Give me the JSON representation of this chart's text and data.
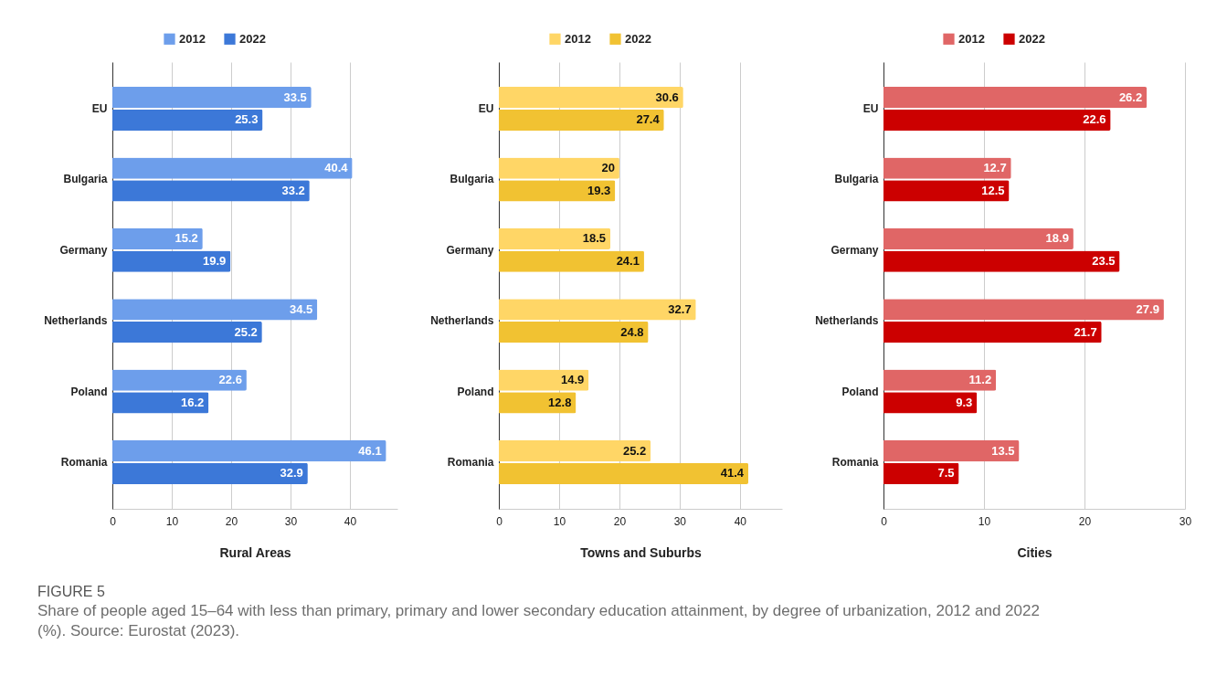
{
  "chart_data": [
    {
      "type": "bar",
      "orientation": "horizontal",
      "categories": [
        "EU",
        "Bulgaria",
        "Germany",
        "Netherlands",
        "Poland",
        "Romania"
      ],
      "series": [
        {
          "name": "2012",
          "color": "#6d9eeb",
          "values": [
            33.5,
            40.4,
            15.2,
            34.5,
            22.6,
            46.1
          ]
        },
        {
          "name": "2022",
          "color": "#3c78d8",
          "values": [
            25.3,
            33.2,
            19.9,
            25.2,
            16.2,
            32.9
          ]
        }
      ],
      "xlabel": "Rural Areas",
      "xlim": [
        0,
        48
      ],
      "xticks": [
        0,
        10,
        20,
        30,
        40
      ],
      "grid": "x",
      "legend": "top",
      "data_labels": true
    },
    {
      "type": "bar",
      "orientation": "horizontal",
      "categories": [
        "EU",
        "Bulgaria",
        "Germany",
        "Netherlands",
        "Poland",
        "Romania"
      ],
      "series": [
        {
          "name": "2012",
          "color": "#ffd666",
          "values": [
            30.6,
            20,
            18.5,
            32.7,
            14.9,
            25.2
          ]
        },
        {
          "name": "2022",
          "color": "#f1c232",
          "values": [
            27.4,
            19.3,
            24.1,
            24.8,
            12.8,
            41.4
          ]
        }
      ],
      "xlabel": "Towns and Suburbs",
      "xlim": [
        0,
        47
      ],
      "xticks": [
        0,
        10,
        20,
        30,
        40
      ],
      "grid": "x",
      "legend": "top",
      "data_labels": true
    },
    {
      "type": "bar",
      "orientation": "horizontal",
      "categories": [
        "EU",
        "Bulgaria",
        "Germany",
        "Netherlands",
        "Poland",
        "Romania"
      ],
      "series": [
        {
          "name": "2012",
          "color": "#e06666",
          "values": [
            26.2,
            12.7,
            18.9,
            27.9,
            11.2,
            13.5
          ]
        },
        {
          "name": "2022",
          "color": "#cc0000",
          "values": [
            22.6,
            12.5,
            23.5,
            21.7,
            9.3,
            7.5
          ]
        }
      ],
      "xlabel": "Cities",
      "xlim": [
        0,
        30
      ],
      "xticks": [
        0,
        10,
        20,
        30
      ],
      "grid": "x",
      "legend": "top",
      "data_labels": true
    },
    {
      "type": "other",
      "title": "FIGURE 5",
      "annotations": [
        "Share of people aged 15–64 with less than primary, primary and lower secondary education attainment, by degree of urbanization, 2012 and 2022 (%). Source: Eurostat (2023)."
      ]
    }
  ]
}
